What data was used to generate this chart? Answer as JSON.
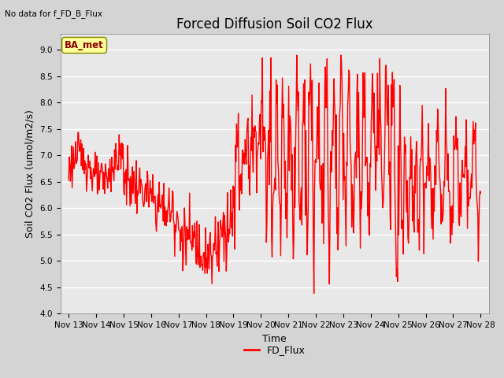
{
  "title": "Forced Diffusion Soil CO2 Flux",
  "subtitle": "No data for f_FD_B_Flux",
  "xlabel": "Time",
  "ylabel": "Soil CO2 Flux (umol/m2/s)",
  "ylim": [
    4.0,
    9.3
  ],
  "yticks": [
    4.0,
    4.5,
    5.0,
    5.5,
    6.0,
    6.5,
    7.0,
    7.5,
    8.0,
    8.5,
    9.0
  ],
  "line_color": "#ff0000",
  "line_width": 1.0,
  "fig_bg_color": "#d4d4d4",
  "plot_bg_color": "#e8e8e8",
  "legend_label": "FD_Flux",
  "annotation_label": "BA_met",
  "x_tick_labels": [
    "Nov 13",
    "Nov 14",
    "Nov 15",
    "Nov 16",
    "Nov 17",
    "Nov 18",
    "Nov 19",
    "Nov 20",
    "Nov 21",
    "Nov 22",
    "Nov 23",
    "Nov 24",
    "Nov 25",
    "Nov 26",
    "Nov 27",
    "Nov 28"
  ],
  "title_fontsize": 12,
  "axis_label_fontsize": 9,
  "tick_fontsize": 7.5
}
